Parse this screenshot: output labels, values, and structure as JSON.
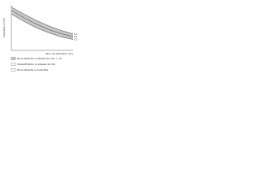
{
  "chart_data": {
    "type": "line",
    "y_label": "Intensité (m³/h)",
    "x_label": "Taux de saturation (%)",
    "x": [
      0,
      20,
      40,
      60,
      80,
      100
    ],
    "series": [
      {
        "name": "C1",
        "color": "#333333",
        "values": [
          95,
          80,
          66,
          54,
          44,
          36
        ]
      },
      {
        "name": "C2",
        "color": "#333333",
        "values": [
          88,
          72,
          58,
          46,
          37,
          30
        ]
      },
      {
        "name": "C3",
        "color": "#333333",
        "values": [
          80,
          64,
          50,
          39,
          30,
          24
        ]
      }
    ],
    "band_color": "#c8c8c8",
    "xlim": [
      0,
      100
    ],
    "ylim": [
      0,
      100
    ],
    "legend": [
      "Zone atteinte si vitesse de l'air > v0",
      "Intensification si vitesse de l'air",
      "Zone atteinte si humidité"
    ]
  }
}
